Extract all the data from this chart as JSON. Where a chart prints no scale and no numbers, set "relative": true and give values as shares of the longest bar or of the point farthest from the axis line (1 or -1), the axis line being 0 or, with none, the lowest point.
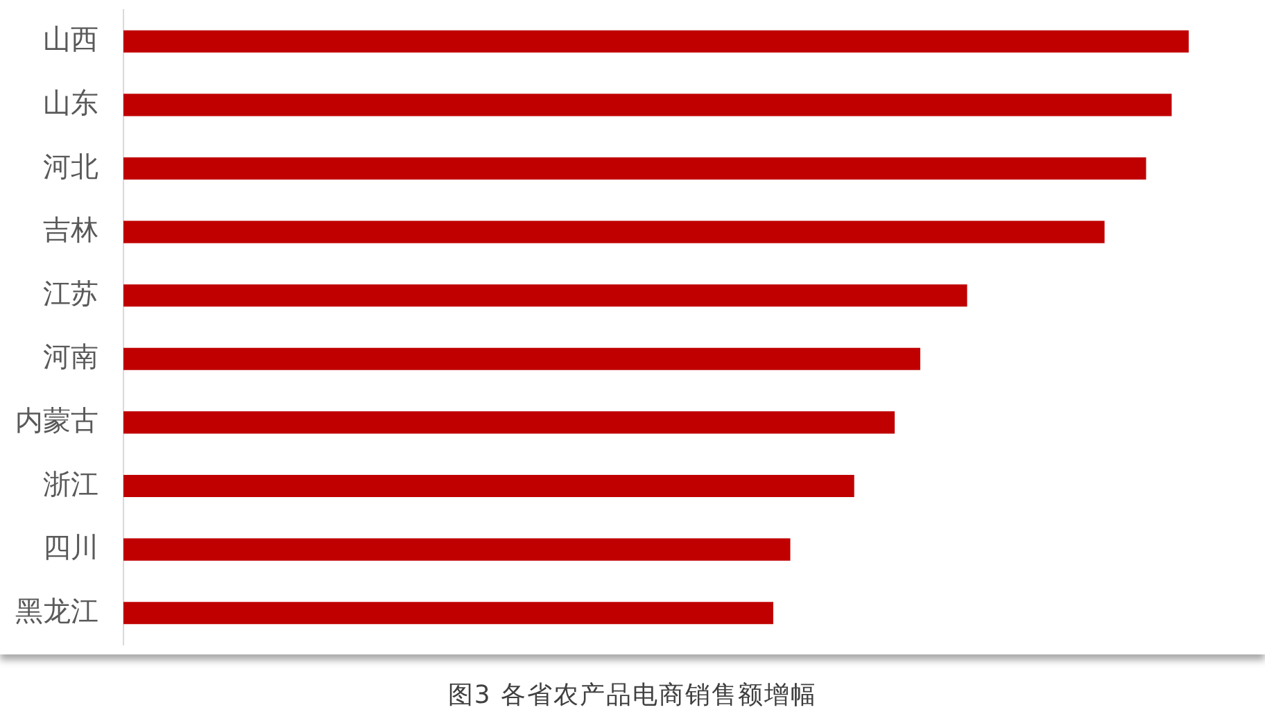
{
  "chart_data": {
    "type": "bar",
    "orientation": "horizontal",
    "relative": true,
    "title": "图3 各省农产品电商销售额增幅",
    "categories": [
      "山西",
      "山东",
      "河北",
      "吉林",
      "江苏",
      "河南",
      "内蒙古",
      "浙江",
      "四川",
      "黑龙江"
    ],
    "values": [
      1,
      0.984,
      0.96,
      0.921,
      0.792,
      0.748,
      0.724,
      0.686,
      0.626,
      0.61
    ],
    "color": "#c00000"
  }
}
